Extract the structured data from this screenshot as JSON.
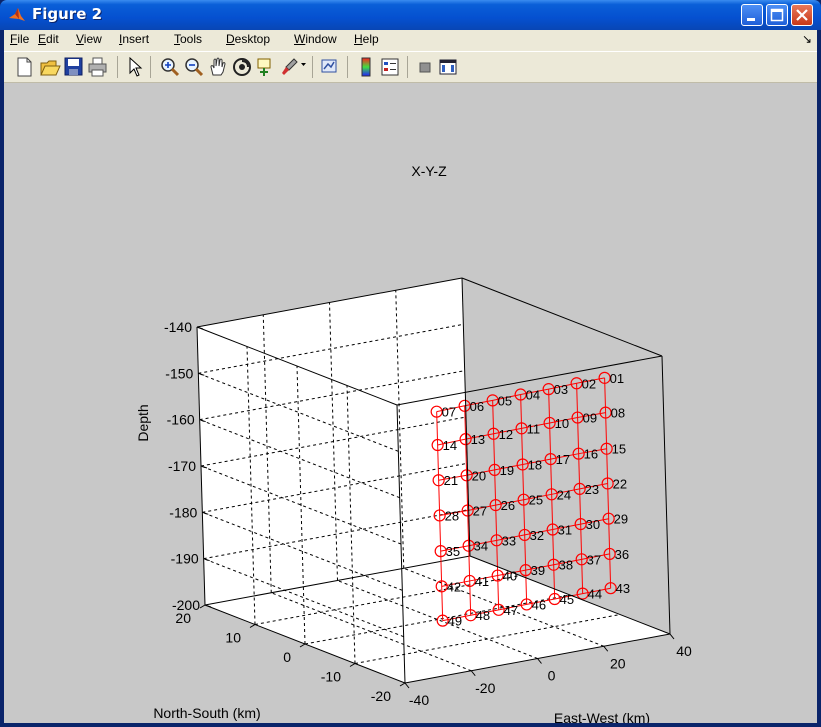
{
  "window": {
    "title": "Figure 2"
  },
  "menu": {
    "items": [
      "File",
      "Edit",
      "View",
      "Insert",
      "Tools",
      "Desktop",
      "Window",
      "Help"
    ],
    "underline": [
      "F",
      "E",
      "V",
      "I",
      "T",
      "D",
      "W",
      "H"
    ]
  },
  "toolbar": {
    "icons": [
      "new-figure-icon",
      "open-file-icon",
      "save-icon",
      "print-icon",
      "edit-plot-arrow-icon",
      "zoom-in-icon",
      "zoom-out-icon",
      "pan-hand-icon",
      "rotate-3d-icon",
      "data-cursor-icon",
      "brush-icon",
      "brush-dropdown-icon",
      "link-plot-icon",
      "insert-colorbar-icon",
      "insert-legend-icon",
      "hide-plot-tools-icon",
      "show-plot-tools-icon"
    ]
  },
  "colors": {
    "titlebar": "#0550d0",
    "canvas": "#c8c8c8",
    "marker": "#ff0000",
    "axes_bg": "#ffffff"
  },
  "chart_data": {
    "type": "scatter3d",
    "title": "X-Y-Z",
    "xlabel": "East-West (km)",
    "ylabel": "North-South (km)",
    "zlabel": "Depth",
    "xlim": [
      -40,
      40
    ],
    "ylim": [
      -20,
      20
    ],
    "zlim": [
      -200,
      -140
    ],
    "xticks": [
      -40,
      -20,
      0,
      20,
      40
    ],
    "yticks": [
      -20,
      -10,
      0,
      10,
      20
    ],
    "zticks": [
      -200,
      -190,
      -180,
      -170,
      -160,
      -150,
      -140
    ],
    "grid": true,
    "points": [
      {
        "label": "01",
        "x": 30,
        "y": -15,
        "z": -145.5
      },
      {
        "label": "02",
        "x": 26,
        "y": -12,
        "z": -147.4
      },
      {
        "label": "03",
        "x": 22,
        "y": -9,
        "z": -149.4
      },
      {
        "label": "04",
        "x": 18,
        "y": -6,
        "z": -151.3
      },
      {
        "label": "05",
        "x": 14,
        "y": -3,
        "z": -153.3
      },
      {
        "label": "06",
        "x": 10,
        "y": 0,
        "z": -155.2
      },
      {
        "label": "07",
        "x": 6,
        "y": 3,
        "z": -157.2
      },
      {
        "label": "08",
        "x": 30,
        "y": -15,
        "z": -153.0
      },
      {
        "label": "09",
        "x": 26,
        "y": -12,
        "z": -154.8
      },
      {
        "label": "10",
        "x": 22,
        "y": -9,
        "z": -156.7
      },
      {
        "label": "11",
        "x": 18,
        "y": -6,
        "z": -158.6
      },
      {
        "label": "12",
        "x": 14,
        "y": -3,
        "z": -160.5
      },
      {
        "label": "13",
        "x": 10,
        "y": 0,
        "z": -162.4
      },
      {
        "label": "14",
        "x": 6,
        "y": 3,
        "z": -164.4
      },
      {
        "label": "15",
        "x": 30,
        "y": -15,
        "z": -160.8
      },
      {
        "label": "16",
        "x": 26,
        "y": -12,
        "z": -162.6
      },
      {
        "label": "17",
        "x": 22,
        "y": -9,
        "z": -164.5
      },
      {
        "label": "18",
        "x": 18,
        "y": -6,
        "z": -166.4
      },
      {
        "label": "19",
        "x": 14,
        "y": -3,
        "z": -168.3
      },
      {
        "label": "20",
        "x": 10,
        "y": 0,
        "z": -170.2
      },
      {
        "label": "21",
        "x": 6,
        "y": 3,
        "z": -172.0
      },
      {
        "label": "22",
        "x": 30,
        "y": -15,
        "z": -168.3
      },
      {
        "label": "23",
        "x": 26,
        "y": -12,
        "z": -170.2
      },
      {
        "label": "24",
        "x": 22,
        "y": -9,
        "z": -172.1
      },
      {
        "label": "25",
        "x": 18,
        "y": -6,
        "z": -174.0
      },
      {
        "label": "26",
        "x": 14,
        "y": -3,
        "z": -175.9
      },
      {
        "label": "27",
        "x": 10,
        "y": 0,
        "z": -177.8
      },
      {
        "label": "28",
        "x": 6,
        "y": 3,
        "z": -179.6
      },
      {
        "label": "29",
        "x": 30,
        "y": -15,
        "z": -175.9
      },
      {
        "label": "30",
        "x": 26,
        "y": -12,
        "z": -177.8
      },
      {
        "label": "31",
        "x": 22,
        "y": -9,
        "z": -179.7
      },
      {
        "label": "32",
        "x": 18,
        "y": -6,
        "z": -181.6
      },
      {
        "label": "33",
        "x": 14,
        "y": -3,
        "z": -183.5
      },
      {
        "label": "34",
        "x": 10,
        "y": 0,
        "z": -185.4
      },
      {
        "label": "35",
        "x": 6,
        "y": 3,
        "z": -187.3
      },
      {
        "label": "36",
        "x": 30,
        "y": -15,
        "z": -183.5
      },
      {
        "label": "37",
        "x": 26,
        "y": -12,
        "z": -185.4
      },
      {
        "label": "38",
        "x": 22,
        "y": -9,
        "z": -187.3
      },
      {
        "label": "39",
        "x": 18,
        "y": -6,
        "z": -189.2
      },
      {
        "label": "40",
        "x": 14,
        "y": -3,
        "z": -191.1
      },
      {
        "label": "41",
        "x": 10,
        "y": 0,
        "z": -193.0
      },
      {
        "label": "42",
        "x": 6,
        "y": 3,
        "z": -194.9
      },
      {
        "label": "43",
        "x": 30,
        "y": -15,
        "z": -190.9
      },
      {
        "label": "44",
        "x": 26,
        "y": -12,
        "z": -192.8
      },
      {
        "label": "45",
        "x": 22,
        "y": -9,
        "z": -194.7
      },
      {
        "label": "46",
        "x": 18,
        "y": -6,
        "z": -196.6
      },
      {
        "label": "47",
        "x": 14,
        "y": -3,
        "z": -198.5
      },
      {
        "label": "48",
        "x": 10,
        "y": 0,
        "z": -200.4
      },
      {
        "label": "49",
        "x": 6,
        "y": 3,
        "z": -202.3
      }
    ],
    "lines": [
      [
        "01",
        "02",
        "03",
        "04",
        "05",
        "06",
        "07"
      ],
      [
        "08",
        "09",
        "10",
        "11",
        "12",
        "13",
        "14"
      ],
      [
        "15",
        "16",
        "17",
        "18",
        "19",
        "20",
        "21"
      ],
      [
        "22",
        "23",
        "24",
        "25",
        "26",
        "27",
        "28"
      ],
      [
        "29",
        "30",
        "31",
        "32",
        "33",
        "34",
        "35"
      ],
      [
        "36",
        "37",
        "38",
        "39",
        "40",
        "41",
        "42"
      ],
      [
        "43",
        "44",
        "45",
        "46",
        "47",
        "48",
        "49"
      ],
      [
        "01",
        "08",
        "15",
        "22",
        "29",
        "36",
        "43"
      ],
      [
        "02",
        "09",
        "16",
        "23",
        "30",
        "37",
        "44"
      ],
      [
        "03",
        "10",
        "17",
        "24",
        "31",
        "38",
        "45"
      ],
      [
        "04",
        "11",
        "18",
        "25",
        "32",
        "39",
        "46"
      ],
      [
        "05",
        "12",
        "19",
        "26",
        "33",
        "40",
        "47"
      ],
      [
        "06",
        "13",
        "20",
        "27",
        "34",
        "41",
        "48"
      ],
      [
        "07",
        "14",
        "21",
        "28",
        "35",
        "42",
        "49"
      ]
    ]
  }
}
